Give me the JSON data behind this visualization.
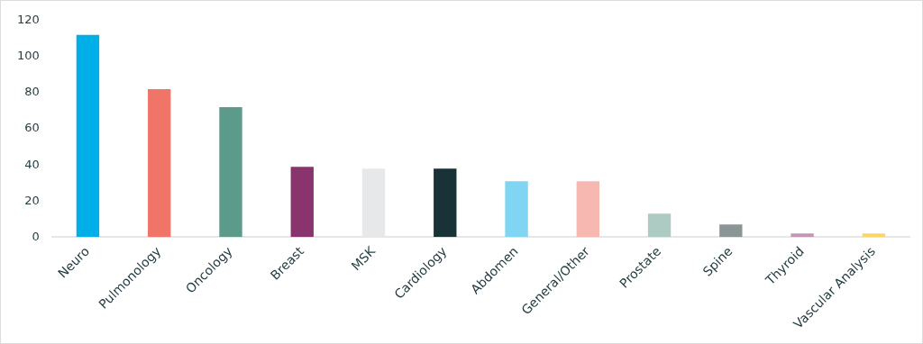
{
  "chart_data": {
    "type": "bar",
    "categories": [
      "Neuro",
      "Pulmonology",
      "Oncology",
      "Breast",
      "MSK",
      "Cardiology",
      "Abdomen",
      "General/Other",
      "Prostate",
      "Spine",
      "Thyroid",
      "Vascular Analysis"
    ],
    "values": [
      112,
      82,
      72,
      39,
      38,
      38,
      31,
      31,
      13,
      7,
      2,
      2
    ],
    "colors": [
      "#00aee8",
      "#f07468",
      "#5c9b8a",
      "#8a346e",
      "#e7e8ea",
      "#193237",
      "#7fd5f2",
      "#f6b8b1",
      "#aecbc3",
      "#8a9696",
      "#c596b4",
      "#fbd667"
    ],
    "ylim": [
      0,
      120
    ],
    "yticks": [
      0,
      20,
      40,
      60,
      80,
      100,
      120
    ],
    "grid": false,
    "legend": false
  }
}
